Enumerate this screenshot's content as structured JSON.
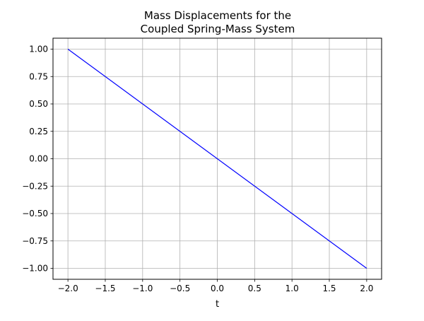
{
  "chart_data": {
    "type": "line",
    "title": [
      "Mass Displacements for the",
      "Coupled Spring-Mass System"
    ],
    "xlabel": "t",
    "ylabel": "",
    "xlim": [
      -2.2,
      2.2
    ],
    "ylim": [
      -1.1,
      1.1
    ],
    "xticks": [
      -2.0,
      -1.5,
      -1.0,
      -0.5,
      0.0,
      0.5,
      1.0,
      1.5,
      2.0
    ],
    "xtick_labels": [
      "−2.0",
      "−1.5",
      "−1.0",
      "−0.5",
      "0.0",
      "0.5",
      "1.0",
      "1.5",
      "2.0"
    ],
    "yticks": [
      1.0,
      0.75,
      0.5,
      0.25,
      0.0,
      -0.25,
      -0.5,
      -0.75,
      -1.0
    ],
    "ytick_labels": [
      "1.00",
      "0.75",
      "0.50",
      "0.25",
      "0.00",
      "−0.25",
      "−0.50",
      "−0.75",
      "−1.00"
    ],
    "grid": true,
    "series": [
      {
        "color": "#0000ff",
        "x": [
          -2.0,
          2.0
        ],
        "y": [
          1.0,
          -1.0
        ]
      }
    ]
  }
}
